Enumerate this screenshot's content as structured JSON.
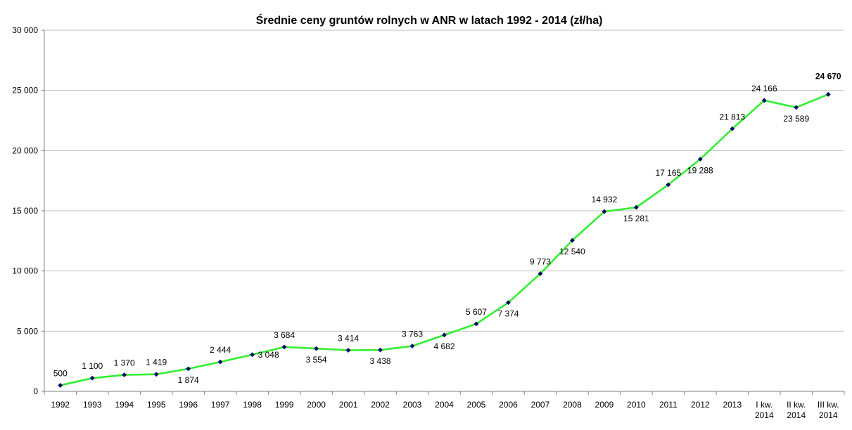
{
  "chart_data": {
    "type": "line",
    "title": "Średnie ceny gruntów rolnych w ANR w latach 1992 - 2014 (zł/ha)",
    "xlabel": "",
    "ylabel": "",
    "ylim": [
      0,
      30000
    ],
    "yticks": [
      {
        "value": 0,
        "label": "0"
      },
      {
        "value": 5000,
        "label": "5 000"
      },
      {
        "value": 10000,
        "label": "10 000"
      },
      {
        "value": 15000,
        "label": "15 000"
      },
      {
        "value": 20000,
        "label": "20 000"
      },
      {
        "value": 25000,
        "label": "25 000"
      },
      {
        "value": 30000,
        "label": "30 000"
      }
    ],
    "grid": true,
    "legend": "none",
    "line_color": "#33ee33",
    "marker_color": "#000066",
    "categories": [
      [
        "1992"
      ],
      [
        "1993"
      ],
      [
        "1994"
      ],
      [
        "1995"
      ],
      [
        "1996"
      ],
      [
        "1997"
      ],
      [
        "1998"
      ],
      [
        "1999"
      ],
      [
        "2000"
      ],
      [
        "2001"
      ],
      [
        "2002"
      ],
      [
        "2003"
      ],
      [
        "2004"
      ],
      [
        "2005"
      ],
      [
        "2006"
      ],
      [
        "2007"
      ],
      [
        "2008"
      ],
      [
        "2009"
      ],
      [
        "2010"
      ],
      [
        "2011"
      ],
      [
        "2012"
      ],
      [
        "2013"
      ],
      [
        "I kw.",
        "2014"
      ],
      [
        "II kw.",
        "2014"
      ],
      [
        "III kw.",
        "2014"
      ]
    ],
    "values": [
      500,
      1100,
      1370,
      1419,
      1874,
      2444,
      3048,
      3684,
      3554,
      3414,
      3438,
      3763,
      4682,
      5607,
      7374,
      9773,
      12540,
      14932,
      15281,
      17165,
      19288,
      21813,
      24166,
      23589,
      24670
    ],
    "data_labels": [
      "500",
      "1 100",
      "1 370",
      "1 419",
      "1 874",
      "2 444",
      "3 048",
      "3 684",
      "3 554",
      "3 414",
      "3 438",
      "3 763",
      "4 682",
      "5 607",
      "7 374",
      "9 773",
      "12 540",
      "14 932",
      "15 281",
      "17 165",
      "19 288",
      "21 813",
      "24 166",
      "23 589",
      "24 670"
    ]
  }
}
